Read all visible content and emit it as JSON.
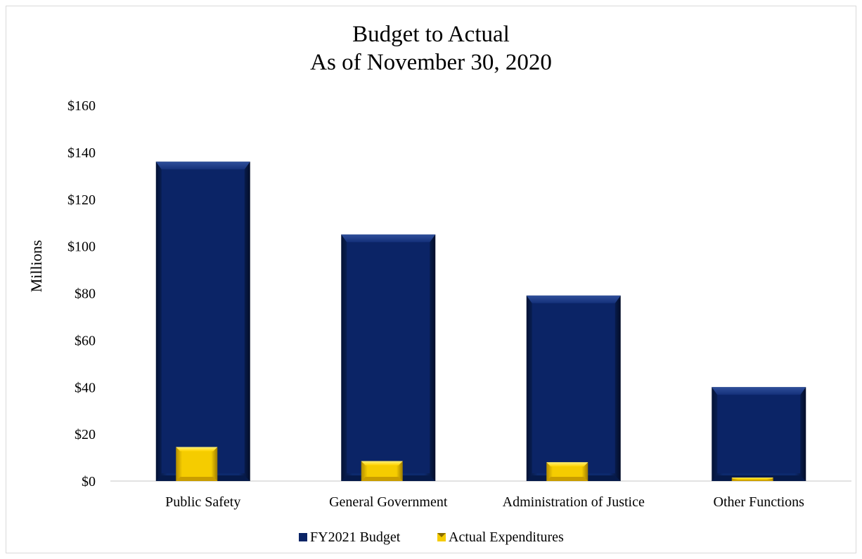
{
  "chart_data": {
    "type": "bar",
    "title": "Budget to Actual",
    "subtitle": "As of November 30, 2020",
    "xlabel": "",
    "ylabel": "Millions",
    "ylim": [
      0,
      160
    ],
    "y_ticks": [
      0,
      20,
      40,
      60,
      80,
      100,
      120,
      140,
      160
    ],
    "y_tick_labels": [
      "$0",
      "$20",
      "$40",
      "$60",
      "$80",
      "$100",
      "$120",
      "$140",
      "$160"
    ],
    "categories": [
      "Public Safety",
      "General Government",
      "Administration of Justice",
      "Other Functions"
    ],
    "series": [
      {
        "name": "FY2021 Budget",
        "color": "#0b2466",
        "values": [
          136,
          105,
          79,
          40
        ]
      },
      {
        "name": "Actual Expenditures",
        "color": "#f2c500",
        "values": [
          14.5,
          8.5,
          8,
          1.5
        ]
      }
    ],
    "grid": false,
    "legend_position": "bottom"
  }
}
